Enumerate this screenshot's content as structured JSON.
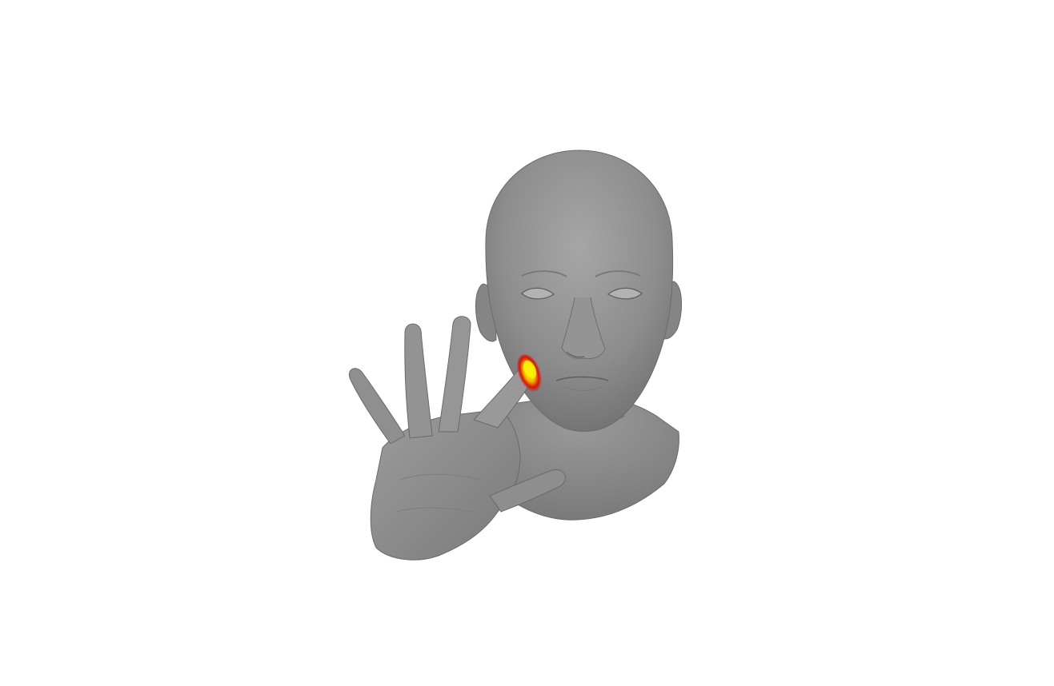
{
  "viewer": {
    "background_color": "#ffffff",
    "mesh_color": "#8c8c8c",
    "mesh_shadow_color": "#6e6e6e",
    "mesh_highlight_color": "#a4a4a4",
    "contact_color_core": "#f4f000",
    "contact_color_edge": "#e00000"
  },
  "scene": {
    "objects": [
      {
        "name": "head-mesh",
        "icon": "head-icon"
      },
      {
        "name": "hand-mesh",
        "icon": "hand-icon"
      },
      {
        "name": "contact-heatmap",
        "icon": "heatmap-icon"
      }
    ]
  }
}
